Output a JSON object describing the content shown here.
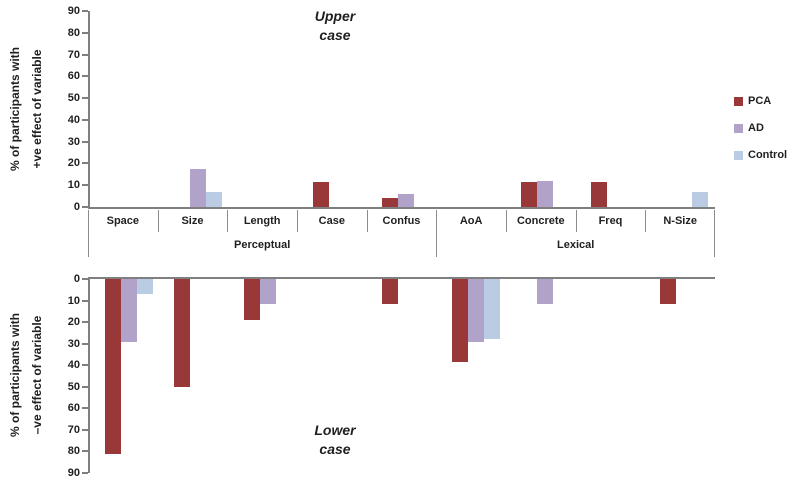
{
  "chart_data": {
    "type": "bar",
    "layout": "two vertically mirrored clustered-bar panels sharing one grouped category axis, legend at right, no gridlines",
    "categories": [
      "Space",
      "Size",
      "Length",
      "Case",
      "Confus",
      "AoA",
      "Concrete",
      "Freq",
      "N-Size"
    ],
    "category_groups": [
      {
        "label": "Perceptual",
        "span": 5
      },
      {
        "label": "Lexical",
        "span": 4
      }
    ],
    "series_names": [
      "PCA",
      "AD",
      "Control"
    ],
    "series_colors": {
      "PCA": "#993838",
      "AD": "#B0A2C8",
      "Control": "#BACCE3"
    },
    "upper": {
      "title_line1": "Upper",
      "title_line2": "case",
      "ylabel_line1": "% of participants with",
      "ylabel_line2": "+ve effect of variable",
      "ylim": [
        0,
        90
      ],
      "ytick_step": 10,
      "direction": "up",
      "series": [
        {
          "name": "PCA",
          "values": [
            0,
            0,
            0,
            11.5,
            4,
            0,
            11.5,
            11.5,
            0
          ]
        },
        {
          "name": "AD",
          "values": [
            0,
            17.5,
            0,
            0,
            6,
            0,
            12,
            0,
            0
          ]
        },
        {
          "name": "Control",
          "values": [
            0,
            7,
            0,
            0,
            0,
            0,
            0,
            0,
            7
          ]
        }
      ]
    },
    "lower": {
      "title_line1": "Lower",
      "title_line2": "case",
      "ylabel_line1": "% of participants with",
      "ylabel_line2": "–ve effect of variable",
      "ylim": [
        0,
        90
      ],
      "ytick_step": 10,
      "direction": "down",
      "series": [
        {
          "name": "PCA",
          "values": [
            81,
            50,
            19,
            0,
            11.5,
            38.5,
            0,
            0,
            11.5
          ]
        },
        {
          "name": "AD",
          "values": [
            29,
            0,
            11.5,
            0,
            0,
            29,
            11.5,
            0,
            0
          ]
        },
        {
          "name": "Control",
          "values": [
            7,
            0,
            0,
            0,
            0,
            28,
            0,
            0,
            0
          ]
        }
      ]
    }
  },
  "legend": {
    "items": [
      {
        "label": "PCA",
        "color": "#993838"
      },
      {
        "label": "AD",
        "color": "#B0A2C8"
      },
      {
        "label": "Control",
        "color": "#BACCE3"
      }
    ]
  },
  "style": {
    "axis_color": "#7F7F7F",
    "separator_color": "#8C8C8C",
    "text_color": "#1F1F1F",
    "background": "#FFFFFF"
  }
}
